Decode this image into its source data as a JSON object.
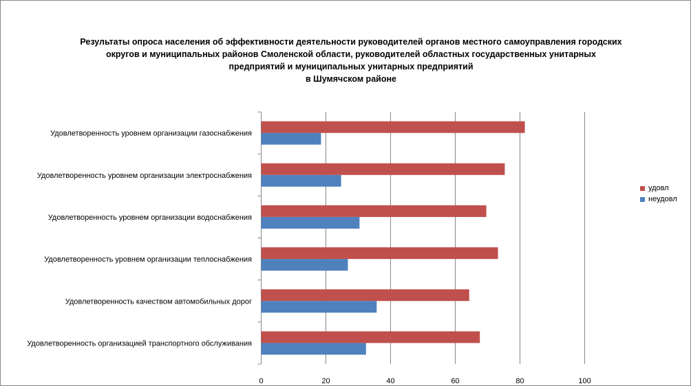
{
  "chart_data": {
    "type": "bar",
    "orientation": "horizontal",
    "title_lines": [
      "Результаты опроса населения об эффективности деятельности руководителей органов местного самоуправления городских",
      "округов и муниципальных районов Смоленской области, руководителей областных государственных унитарных",
      "предприятий и муниципальных унитарных предприятий",
      "в Шумячском районе"
    ],
    "categories": [
      "Удовлетворенность уровнем организации газоснабжения",
      "Удовлетворенность уровнем организации электроснабжения",
      "Удовлетворенность уровнем организации водоснабжения",
      "Удовлетворенность уровнем организации теплоснабжения",
      "Удовлетворенность качеством автомобильных дорог",
      "Удовлетворенность организацией транспортного обслуживания"
    ],
    "series": [
      {
        "name": "удовл",
        "color": "#C0504D",
        "values": [
          81.5,
          75.3,
          69.6,
          73.2,
          64.3,
          67.6
        ]
      },
      {
        "name": "неудовл",
        "color": "#4F81BD",
        "values": [
          18.5,
          24.7,
          30.4,
          26.8,
          35.7,
          32.4
        ]
      }
    ],
    "xlim": [
      0,
      100
    ],
    "xticks": [
      0,
      20,
      40,
      60,
      80,
      100
    ],
    "grid": true,
    "legend": "right"
  }
}
